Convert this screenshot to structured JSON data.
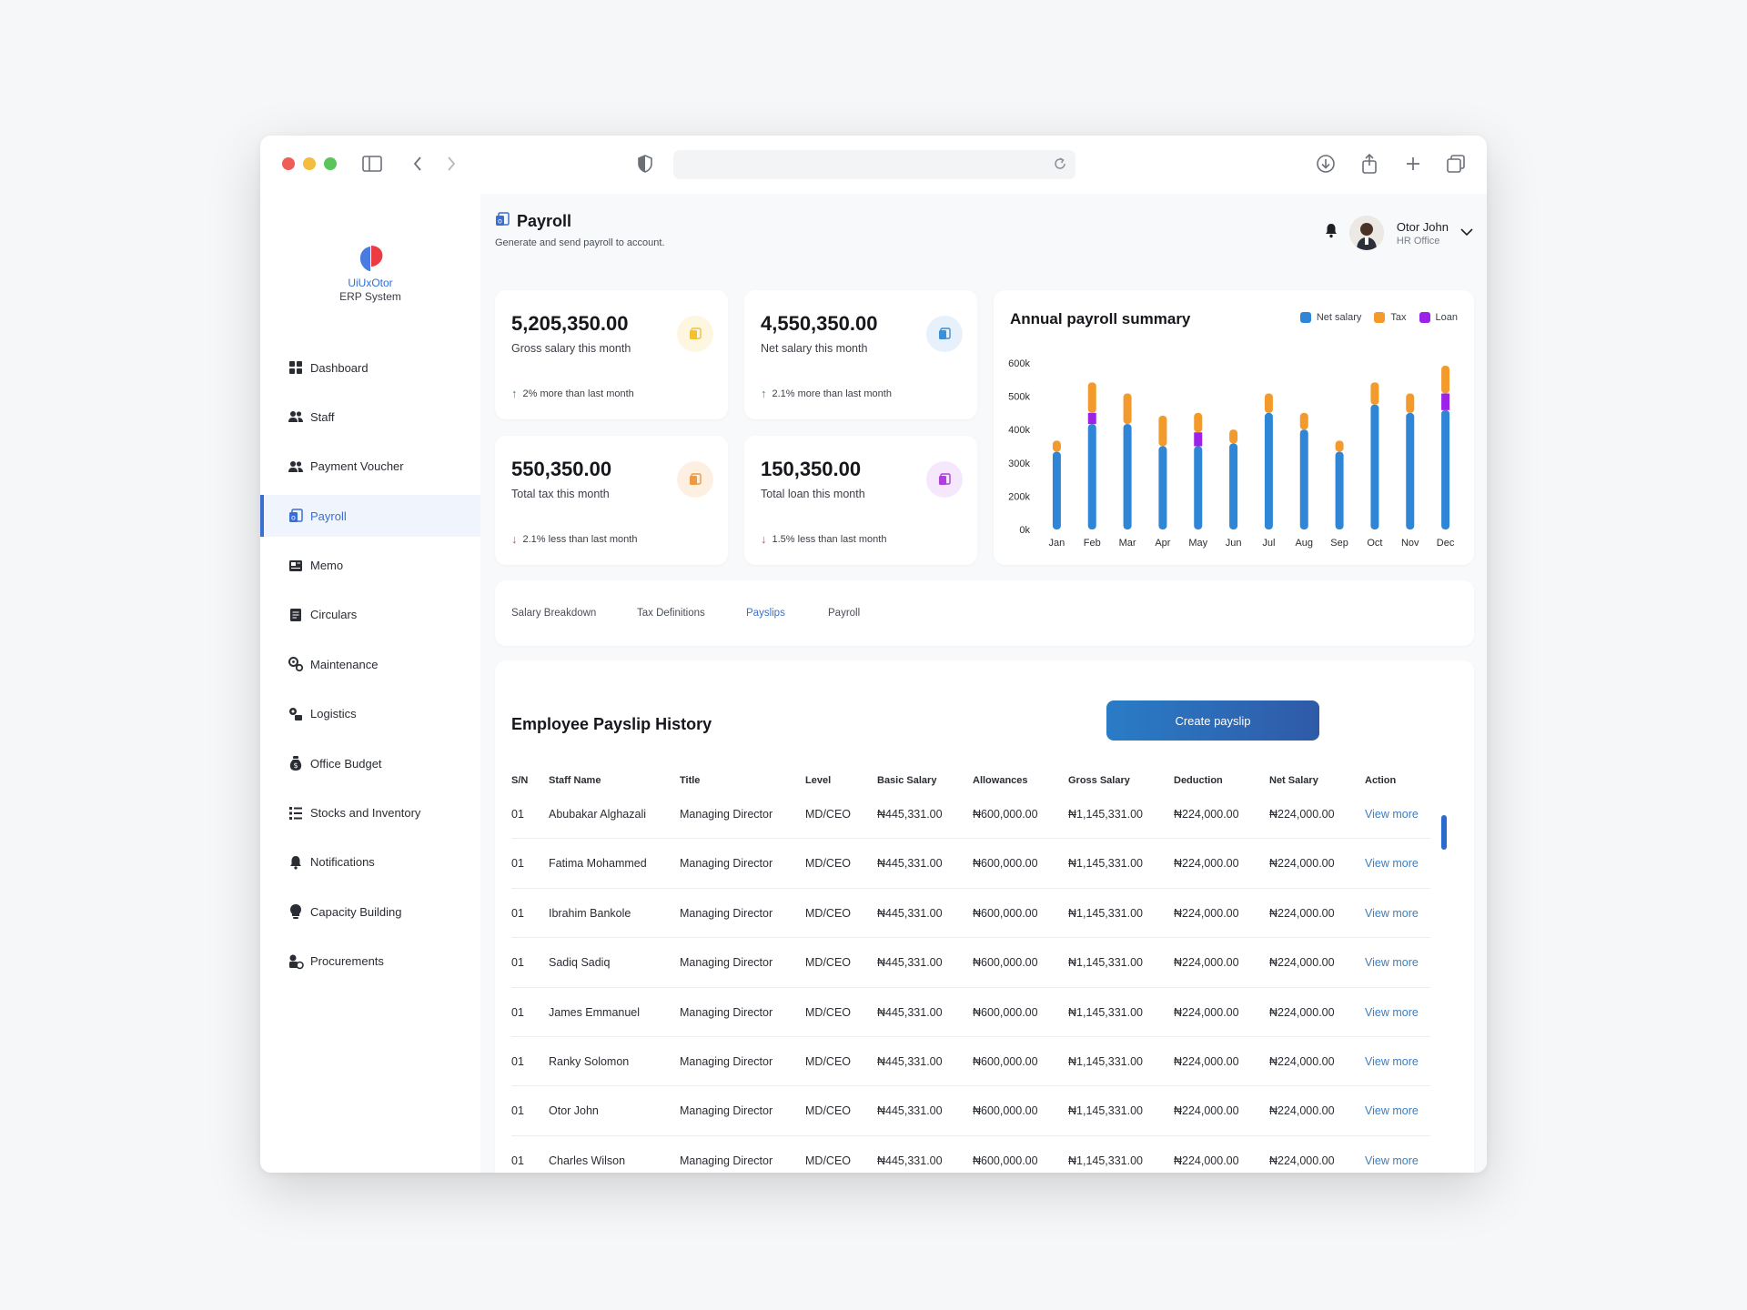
{
  "browser": {
    "icons": [
      "sidebar-toggle-icon",
      "back-icon",
      "forward-icon",
      "shield-icon",
      "reload-icon",
      "download-icon",
      "share-icon",
      "new-tab-icon",
      "tabs-overview-icon"
    ]
  },
  "logo": {
    "name": "UiUxOtor",
    "subtitle": "ERP System"
  },
  "sidebar": {
    "items": [
      {
        "label": "Dashboard",
        "icon": "dashboard-icon"
      },
      {
        "label": "Staff",
        "icon": "staff-icon"
      },
      {
        "label": "Payment Voucher",
        "icon": "voucher-icon"
      },
      {
        "label": "Payroll",
        "icon": "payroll-icon",
        "active": true
      },
      {
        "label": "Memo",
        "icon": "memo-icon"
      },
      {
        "label": "Circulars",
        "icon": "circulars-icon"
      },
      {
        "label": "Maintenance",
        "icon": "maintenance-icon"
      },
      {
        "label": "Logistics",
        "icon": "logistics-icon"
      },
      {
        "label": "Office Budget",
        "icon": "budget-icon"
      },
      {
        "label": "Stocks and Inventory",
        "icon": "inventory-icon"
      },
      {
        "label": "Notifications",
        "icon": "bell-icon"
      },
      {
        "label": "Capacity Building",
        "icon": "capacity-icon"
      },
      {
        "label": "Procurements",
        "icon": "procurements-icon"
      }
    ]
  },
  "header": {
    "title": "Payroll",
    "subtitle": "Generate and send payroll to account.",
    "user": {
      "name": "Otor John",
      "role": "HR Office"
    }
  },
  "stats": [
    {
      "value": "5,205,350.00",
      "label": "Gross salary this month",
      "trend": "2% more than last month",
      "direction": "up",
      "color": "#f2c230"
    },
    {
      "value": "4,550,350.00",
      "label": "Net salary this month",
      "trend": "2.1% more than last month",
      "direction": "up",
      "color": "#3a8fd8"
    },
    {
      "value": "550,350.00",
      "label": "Total tax this month",
      "trend": "2.1% less than last month",
      "direction": "down",
      "color": "#ef9a3c"
    },
    {
      "value": "150,350.00",
      "label": "Total loan this month",
      "trend": "1.5% less than last month",
      "direction": "down",
      "color": "#b13ee0"
    }
  ],
  "chart_data": {
    "type": "bar",
    "stacked": true,
    "title": "Annual payroll summary",
    "categories": [
      "Jan",
      "Feb",
      "Mar",
      "Apr",
      "May",
      "Jun",
      "Jul",
      "Aug",
      "Sep",
      "Oct",
      "Nov",
      "Dec"
    ],
    "series": [
      {
        "name": "Net salary",
        "color": "#2f86d6",
        "values": [
          280000,
          380000,
          380000,
          300000,
          300000,
          310000,
          420000,
          360000,
          280000,
          450000,
          420000,
          430000
        ]
      },
      {
        "name": "Loan",
        "color": "#9b22e6",
        "values": [
          0,
          40000,
          0,
          0,
          50000,
          0,
          0,
          0,
          0,
          0,
          0,
          60000
        ]
      },
      {
        "name": "Tax",
        "color": "#f39a2c",
        "values": [
          40000,
          110000,
          110000,
          110000,
          70000,
          50000,
          70000,
          60000,
          40000,
          80000,
          70000,
          100000
        ]
      }
    ],
    "legend_order": [
      "Net salary",
      "Tax",
      "Loan"
    ],
    "yticks": [
      "600k",
      "500k",
      "400k",
      "300k",
      "200k",
      "0k"
    ],
    "ylim": [
      0,
      600000
    ],
    "grid": false,
    "legend_position": "top-right"
  },
  "tabs": [
    {
      "label": "Salary Breakdown"
    },
    {
      "label": "Tax Definitions"
    },
    {
      "label": "Payslips",
      "active": true
    },
    {
      "label": "Payroll"
    }
  ],
  "table": {
    "title": "Employee Payslip History",
    "create_label": "Create payslip",
    "columns": [
      "S/N",
      "Staff Name",
      "Title",
      "Level",
      "Basic Salary",
      "Allowances",
      "Gross Salary",
      "Deduction",
      "Net Salary",
      "Action"
    ],
    "rows": [
      [
        "01",
        "Abubakar Alghazali",
        "Managing Director",
        "MD/CEO",
        "₦445,331.00",
        "₦600,000.00",
        "₦1,145,331.00",
        "₦224,000.00",
        "₦224,000.00",
        "View more"
      ],
      [
        "01",
        "Fatima Mohammed",
        "Managing Director",
        "MD/CEO",
        "₦445,331.00",
        "₦600,000.00",
        "₦1,145,331.00",
        "₦224,000.00",
        "₦224,000.00",
        "View more"
      ],
      [
        "01",
        "Ibrahim Bankole",
        "Managing Director",
        "MD/CEO",
        "₦445,331.00",
        "₦600,000.00",
        "₦1,145,331.00",
        "₦224,000.00",
        "₦224,000.00",
        "View more"
      ],
      [
        "01",
        "Sadiq Sadiq",
        "Managing Director",
        "MD/CEO",
        "₦445,331.00",
        "₦600,000.00",
        "₦1,145,331.00",
        "₦224,000.00",
        "₦224,000.00",
        "View more"
      ],
      [
        "01",
        "James Emmanuel",
        "Managing Director",
        "MD/CEO",
        "₦445,331.00",
        "₦600,000.00",
        "₦1,145,331.00",
        "₦224,000.00",
        "₦224,000.00",
        "View more"
      ],
      [
        "01",
        "Ranky Solomon",
        "Managing Director",
        "MD/CEO",
        "₦445,331.00",
        "₦600,000.00",
        "₦1,145,331.00",
        "₦224,000.00",
        "₦224,000.00",
        "View more"
      ],
      [
        "01",
        "Otor John",
        "Managing Director",
        "MD/CEO",
        "₦445,331.00",
        "₦600,000.00",
        "₦1,145,331.00",
        "₦224,000.00",
        "₦224,000.00",
        "View more"
      ],
      [
        "01",
        "Charles Wilson",
        "Managing Director",
        "MD/CEO",
        "₦445,331.00",
        "₦600,000.00",
        "₦1,145,331.00",
        "₦224,000.00",
        "₦224,000.00",
        "View more"
      ]
    ]
  }
}
